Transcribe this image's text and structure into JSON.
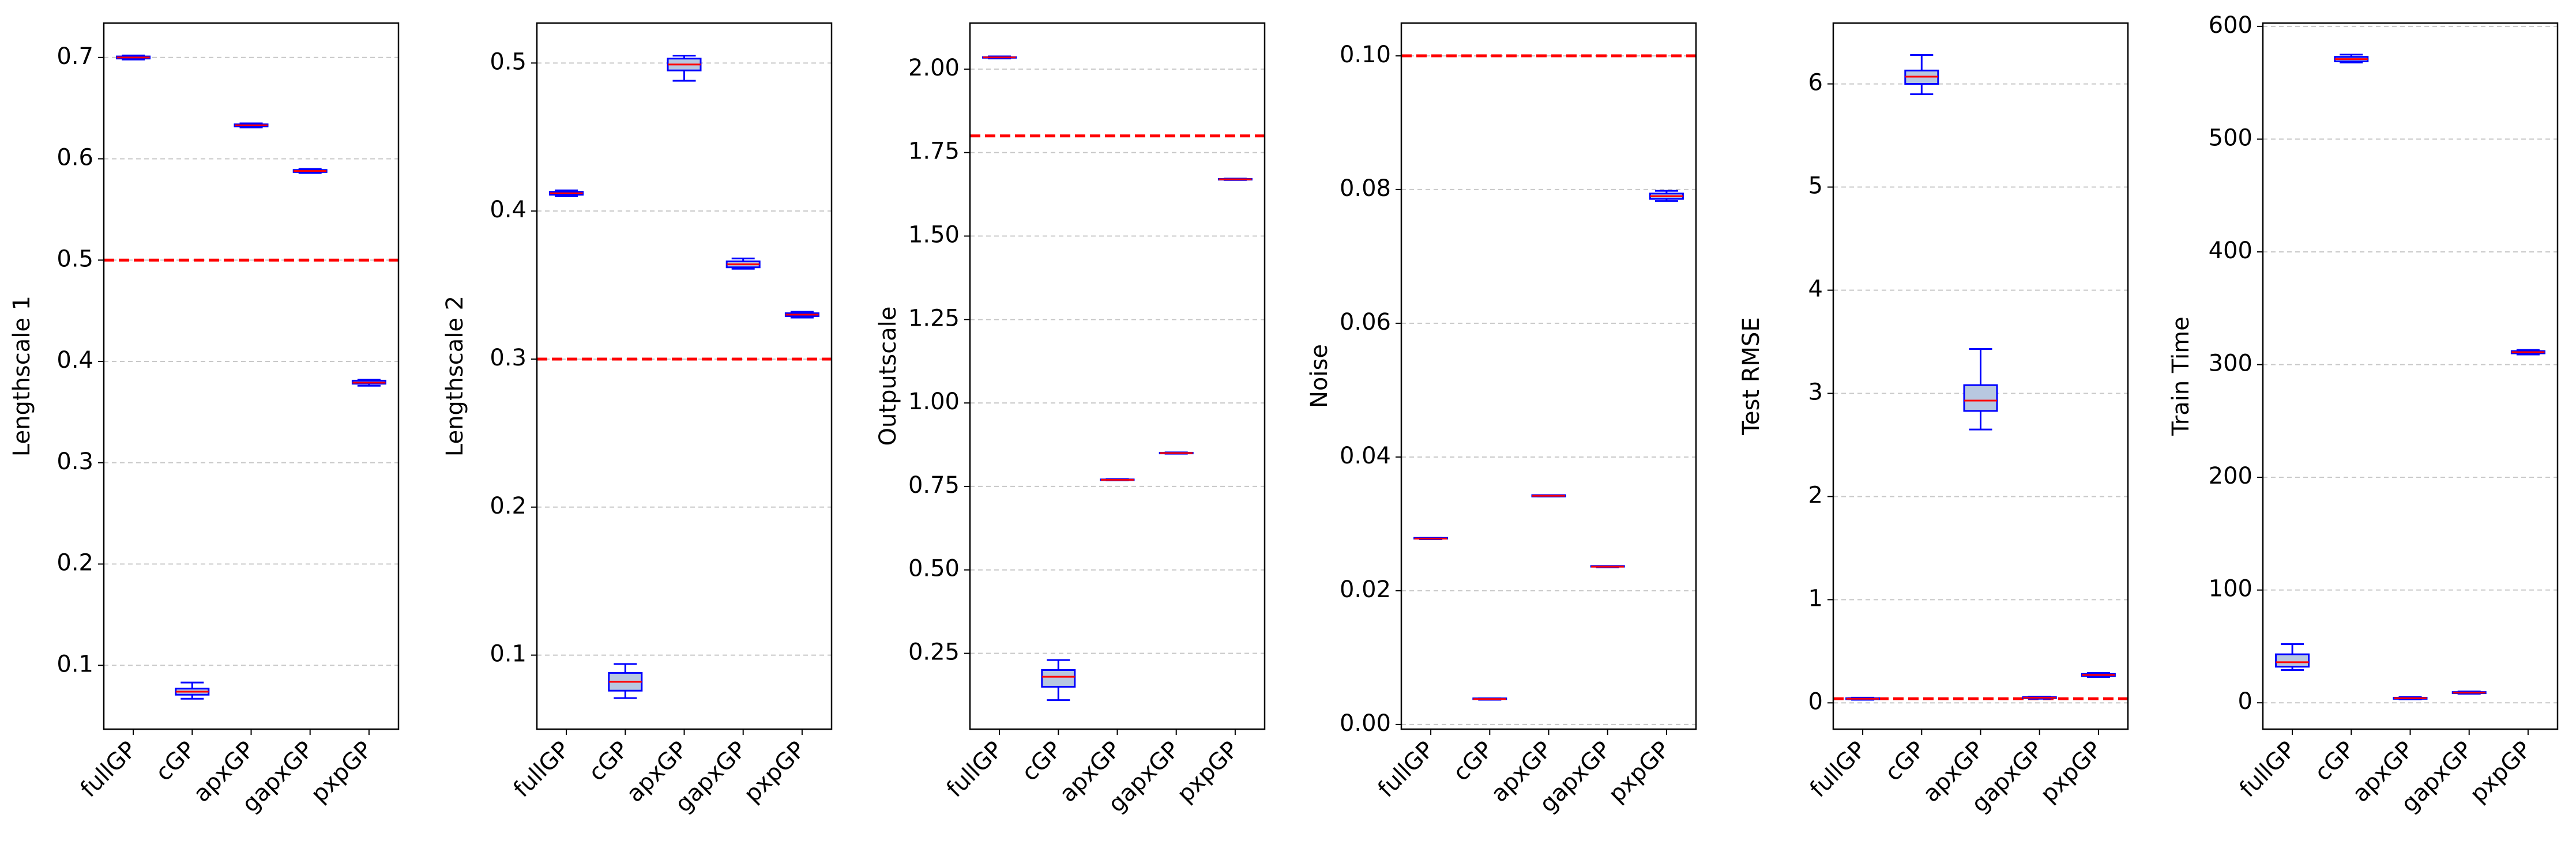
{
  "chart_data": [
    {
      "type": "box",
      "ylabel": "Lengthscale 1",
      "categories": [
        "fullGP",
        "cGP",
        "apxGP",
        "gapxGP",
        "pxpGP"
      ],
      "boxes": [
        {
          "min": 0.698,
          "q1": 0.699,
          "median": 0.7,
          "q3": 0.701,
          "max": 0.702
        },
        {
          "min": 0.067,
          "q1": 0.071,
          "median": 0.074,
          "q3": 0.077,
          "max": 0.083
        },
        {
          "min": 0.631,
          "q1": 0.632,
          "median": 0.633,
          "q3": 0.634,
          "max": 0.635
        },
        {
          "min": 0.586,
          "q1": 0.587,
          "median": 0.588,
          "q3": 0.589,
          "max": 0.59
        },
        {
          "min": 0.376,
          "q1": 0.378,
          "median": 0.379,
          "q3": 0.381,
          "max": 0.382
        }
      ],
      "ylim": [
        0.037,
        0.734
      ],
      "yticks": [
        0.1,
        0.2,
        0.3,
        0.4,
        0.5,
        0.6,
        0.7
      ],
      "grid": true,
      "reference_line": 0.5,
      "reference_color": "#ff0000",
      "box_color": "#0000ff",
      "box_fill": "#b8c8e0",
      "median_color": "#ff0000"
    },
    {
      "type": "box",
      "ylabel": "Lengthscale 2",
      "categories": [
        "fullGP",
        "cGP",
        "apxGP",
        "gapxGP",
        "pxpGP"
      ],
      "boxes": [
        {
          "min": 0.41,
          "q1": 0.411,
          "median": 0.412,
          "q3": 0.413,
          "max": 0.414
        },
        {
          "min": 0.071,
          "q1": 0.076,
          "median": 0.082,
          "q3": 0.088,
          "max": 0.094
        },
        {
          "min": 0.488,
          "q1": 0.495,
          "median": 0.499,
          "q3": 0.503,
          "max": 0.505
        },
        {
          "min": 0.361,
          "q1": 0.362,
          "median": 0.364,
          "q3": 0.366,
          "max": 0.368
        },
        {
          "min": 0.328,
          "q1": 0.329,
          "median": 0.33,
          "q3": 0.331,
          "max": 0.332
        }
      ],
      "ylim": [
        0.05,
        0.527
      ],
      "yticks": [
        0.1,
        0.2,
        0.3,
        0.4,
        0.5
      ],
      "grid": true,
      "reference_line": 0.3,
      "reference_color": "#ff0000",
      "box_color": "#0000ff",
      "box_fill": "#b8c8e0",
      "median_color": "#ff0000"
    },
    {
      "type": "box",
      "ylabel": "Outputscale",
      "categories": [
        "fullGP",
        "cGP",
        "apxGP",
        "gapxGP",
        "pxpGP"
      ],
      "boxes": [
        {
          "min": 2.032,
          "q1": 2.034,
          "median": 2.035,
          "q3": 2.036,
          "max": 2.038
        },
        {
          "min": 0.11,
          "q1": 0.15,
          "median": 0.18,
          "q3": 0.2,
          "max": 0.23
        },
        {
          "min": 0.768,
          "q1": 0.769,
          "median": 0.77,
          "q3": 0.771,
          "max": 0.772
        },
        {
          "min": 0.848,
          "q1": 0.849,
          "median": 0.85,
          "q3": 0.851,
          "max": 0.852
        },
        {
          "min": 1.668,
          "q1": 1.669,
          "median": 1.67,
          "q3": 1.671,
          "max": 1.672
        }
      ],
      "ylim": [
        0.023,
        2.138
      ],
      "yticks": [
        {
          "value": 0.25,
          "label": "0.25"
        },
        {
          "value": 0.5,
          "label": "0.50"
        },
        {
          "value": 0.75,
          "label": "0.75"
        },
        {
          "value": 1,
          "label": "1.00"
        },
        {
          "value": 1.25,
          "label": "1.25"
        },
        {
          "value": 1.5,
          "label": "1.50"
        },
        {
          "value": 1.75,
          "label": "1.75"
        },
        {
          "value": 2,
          "label": "2.00"
        }
      ],
      "grid": true,
      "reference_line": 1.8,
      "reference_color": "#ff0000",
      "box_color": "#0000ff",
      "box_fill": "#b8c8e0",
      "median_color": "#ff0000"
    },
    {
      "type": "box",
      "ylabel": "Noise",
      "categories": [
        "fullGP",
        "cGP",
        "apxGP",
        "gapxGP",
        "pxpGP"
      ],
      "boxes": [
        {
          "min": 0.0277,
          "q1": 0.0278,
          "median": 0.0278,
          "q3": 0.0279,
          "max": 0.0279
        },
        {
          "min": 0.0037,
          "q1": 0.0038,
          "median": 0.0038,
          "q3": 0.0039,
          "max": 0.0039
        },
        {
          "min": 0.0341,
          "q1": 0.0341,
          "median": 0.0342,
          "q3": 0.0343,
          "max": 0.0343
        },
        {
          "min": 0.0235,
          "q1": 0.0236,
          "median": 0.0236,
          "q3": 0.0237,
          "max": 0.0237
        },
        {
          "min": 0.0783,
          "q1": 0.0786,
          "median": 0.079,
          "q3": 0.0794,
          "max": 0.0798
        }
      ],
      "ylim": [
        -0.0007,
        0.1049
      ],
      "yticks": [
        {
          "value": 0,
          "label": "0.00"
        },
        {
          "value": 0.02,
          "label": "0.02"
        },
        {
          "value": 0.04,
          "label": "0.04"
        },
        {
          "value": 0.06,
          "label": "0.06"
        },
        {
          "value": 0.08,
          "label": "0.08"
        },
        {
          "value": 0.1,
          "label": "0.10"
        }
      ],
      "grid": true,
      "reference_line": 0.1,
      "reference_color": "#ff0000",
      "box_color": "#0000ff",
      "box_fill": "#b8c8e0",
      "median_color": "#ff0000"
    },
    {
      "type": "box",
      "ylabel": "Test RMSE",
      "categories": [
        "fullGP",
        "cGP",
        "apxGP",
        "gapxGP",
        "pxpGP"
      ],
      "boxes": [
        {
          "min": 0.03,
          "q1": 0.035,
          "median": 0.04,
          "q3": 0.045,
          "max": 0.05
        },
        {
          "min": 5.9,
          "q1": 6.0,
          "median": 6.07,
          "q3": 6.13,
          "max": 6.28
        },
        {
          "min": 2.65,
          "q1": 2.83,
          "median": 2.93,
          "q3": 3.08,
          "max": 3.43
        },
        {
          "min": 0.04,
          "q1": 0.045,
          "median": 0.05,
          "q3": 0.055,
          "max": 0.06
        },
        {
          "min": 0.25,
          "q1": 0.26,
          "median": 0.27,
          "q3": 0.28,
          "max": 0.29
        }
      ],
      "ylim": [
        -0.255,
        6.59
      ],
      "yticks": [
        0,
        1,
        2,
        3,
        4,
        5,
        6
      ],
      "grid": true,
      "reference_line": 0.04,
      "reference_color": "#ff0000",
      "box_color": "#0000ff",
      "box_fill": "#b8c8e0",
      "median_color": "#ff0000"
    },
    {
      "type": "box",
      "ylabel": "Train Time",
      "categories": [
        "fullGP",
        "cGP",
        "apxGP",
        "gapxGP",
        "pxpGP"
      ],
      "boxes": [
        {
          "min": 29,
          "q1": 32,
          "median": 36,
          "q3": 43,
          "max": 52
        },
        {
          "min": 568,
          "q1": 569,
          "median": 571,
          "q3": 573,
          "max": 575
        },
        {
          "min": 3,
          "q1": 3.5,
          "median": 4,
          "q3": 4.5,
          "max": 5
        },
        {
          "min": 8,
          "q1": 8.5,
          "median": 9,
          "q3": 9.5,
          "max": 10
        },
        {
          "min": 309,
          "q1": 310,
          "median": 311,
          "q3": 312,
          "max": 313
        }
      ],
      "ylim": [
        -23.4,
        603
      ],
      "yticks": [
        0,
        100,
        200,
        300,
        400,
        500,
        600
      ],
      "grid": true,
      "box_color": "#0000ff",
      "box_fill": "#b8c8e0",
      "median_color": "#ff0000"
    }
  ]
}
